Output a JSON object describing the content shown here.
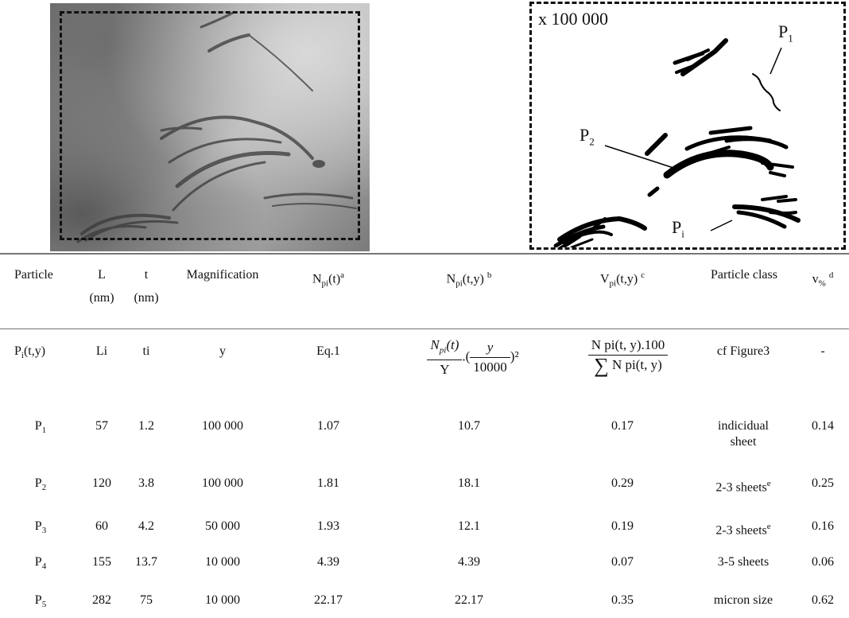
{
  "figure": {
    "magnification_label": "x 100 000",
    "particle_labels": [
      {
        "base": "P",
        "sub": "1"
      },
      {
        "base": "P",
        "sub": "2"
      },
      {
        "base": "P",
        "sub": "i"
      }
    ]
  },
  "table": {
    "headers": {
      "particle": "Particle",
      "L": "L",
      "L_unit": "(nm)",
      "t": "t",
      "t_unit": "(nm)",
      "magnification": "Magnification",
      "npi_t": {
        "base": "N",
        "sub": "pi",
        "args": "(t)",
        "sup": "a"
      },
      "npi_ty": {
        "base": "N",
        "sub": "pi",
        "args": "(t,y)",
        "sup": "b"
      },
      "vpi_ty": {
        "base": "V",
        "sub": "pi",
        "args": "(t,y)",
        "sup": "c"
      },
      "particle_class": "Particle class",
      "v_pct": {
        "base": "v",
        "sub": "%",
        "sup": "d"
      }
    },
    "formula_row": {
      "particle": {
        "base": "P",
        "sub": "i",
        "args": "(t,y)"
      },
      "L": "Li",
      "t": "ti",
      "magnification": "y",
      "npi_t": "Eq.1",
      "npi_ty": {
        "num_base": "N",
        "num_sub": "pi",
        "num_args": "(t)",
        "den": "Y",
        "mid": ".(",
        "inner_num": "y",
        "inner_den": "10000",
        "tail": ")²"
      },
      "vpi_ty": {
        "num": "N pi(t, y).100",
        "den_sym": "∑",
        "den": "N pi(t, y)"
      },
      "particle_class": "cf Figure3",
      "v_pct": "-"
    },
    "rows": [
      {
        "particle": {
          "base": "P",
          "sub": "1"
        },
        "L": "57",
        "t": "1.2",
        "magnification": "100 000",
        "npi_t": "1.07",
        "npi_ty": "10.7",
        "vpi_ty": "0.17",
        "class_line1": "indicidual",
        "class_line2": "sheet",
        "class_sup": "",
        "v_pct": "0.14"
      },
      {
        "particle": {
          "base": "P",
          "sub": "2"
        },
        "L": "120",
        "t": "3.8",
        "magnification": "100 000",
        "npi_t": "1.81",
        "npi_ty": "18.1",
        "vpi_ty": "0.29",
        "class_line1": "2-3 sheets",
        "class_line2": "",
        "class_sup": "e",
        "v_pct": "0.25"
      },
      {
        "particle": {
          "base": "P",
          "sub": "3"
        },
        "L": "60",
        "t": "4.2",
        "magnification": "50 000",
        "npi_t": "1.93",
        "npi_ty": "12.1",
        "vpi_ty": "0.19",
        "class_line1": "2-3 sheets",
        "class_line2": "",
        "class_sup": "e",
        "v_pct": "0.16"
      },
      {
        "particle": {
          "base": "P",
          "sub": "4"
        },
        "L": "155",
        "t": "13.7",
        "magnification": "10 000",
        "npi_t": "4.39",
        "npi_ty": "4.39",
        "vpi_ty": "0.07",
        "class_line1": "3-5 sheets",
        "class_line2": "",
        "class_sup": "",
        "v_pct": "0.06"
      },
      {
        "particle": {
          "base": "P",
          "sub": "5"
        },
        "L": "282",
        "t": "75",
        "magnification": "10 000",
        "npi_t": "22.17",
        "npi_ty": "22.17",
        "vpi_ty": "0.35",
        "class_line1": "micron size",
        "class_line2": "",
        "class_sup": "",
        "v_pct": "0.62"
      }
    ]
  }
}
